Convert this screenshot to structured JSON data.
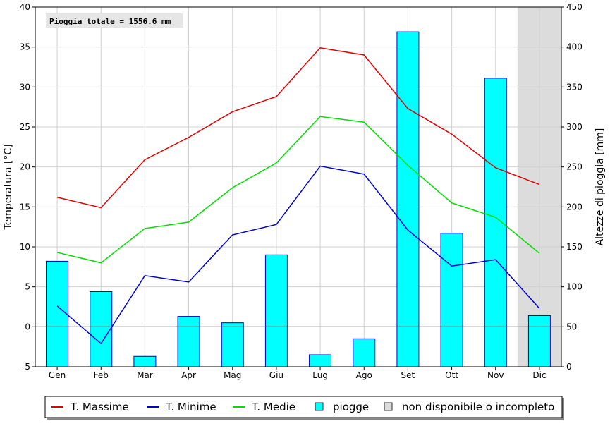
{
  "chart_data": {
    "type": "bar+line",
    "annotation": "Pioggia totale = 1556.6 mm",
    "categories": [
      "Gen",
      "Feb",
      "Mar",
      "Apr",
      "Mag",
      "Giu",
      "Lug",
      "Ago",
      "Set",
      "Ott",
      "Nov",
      "Dic"
    ],
    "left_axis": {
      "label": "Temperatura [°C]",
      "min": -5,
      "max": 40,
      "ticks": [
        -5,
        0,
        5,
        10,
        15,
        20,
        25,
        30,
        35,
        40
      ]
    },
    "right_axis": {
      "label": "Altezze di pioggia [mm]",
      "min": 0,
      "max": 450,
      "ticks": [
        0,
        50,
        100,
        150,
        200,
        250,
        300,
        350,
        400,
        450
      ]
    },
    "grid": true,
    "legend_position": "bottom",
    "series": [
      {
        "name": "T. Massime",
        "kind": "line",
        "axis": "left",
        "color": "#e00000",
        "values": [
          16.2,
          14.9,
          20.9,
          23.7,
          26.9,
          28.8,
          34.9,
          34.0,
          27.3,
          24.1,
          19.9,
          17.8
        ]
      },
      {
        "name": "T. Minime",
        "kind": "line",
        "axis": "left",
        "color": "#0000cc",
        "values": [
          2.6,
          -2.1,
          6.4,
          5.6,
          11.5,
          12.8,
          20.1,
          19.1,
          12.1,
          7.6,
          8.4,
          2.3
        ]
      },
      {
        "name": "T. Medie",
        "kind": "line",
        "axis": "left",
        "color": "#00dd00",
        "values": [
          9.3,
          8.0,
          12.3,
          13.1,
          17.4,
          20.5,
          26.3,
          25.6,
          20.2,
          15.5,
          13.7,
          9.2
        ]
      },
      {
        "name": "piogge",
        "kind": "bar",
        "axis": "right",
        "color": "#00ffff",
        "edge": "#0000cc",
        "values": [
          132,
          94,
          13,
          63,
          55,
          140,
          15,
          35,
          419,
          167,
          361,
          64
        ]
      }
    ],
    "unavailable": {
      "name": "non disponibile o incompleto",
      "months": [
        "Dic"
      ],
      "color": "#dcdcdc"
    }
  }
}
